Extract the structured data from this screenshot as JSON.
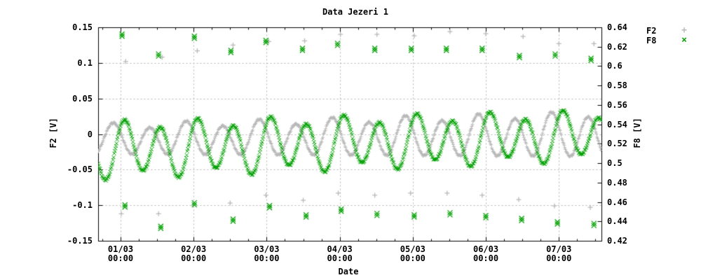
{
  "colors": {
    "background": "#ffffff",
    "axis": "#000000",
    "grid": "#b4b4b4",
    "f2": "#b8b8b8",
    "f8": "#00a000"
  },
  "chart_data": {
    "type": "scatter",
    "title": "Data Jezeri 1",
    "legend": {
      "position": "top-right-outside"
    },
    "x_axis": {
      "label": "Date",
      "unit": "days relative to 01/03 00:00",
      "range": [
        -0.307,
        6.583
      ],
      "major_ticks": [
        0,
        1,
        2,
        3,
        4,
        5,
        6
      ],
      "minor_step": 0.25,
      "grid": true,
      "tick_labels": [
        {
          "t": 0,
          "line1": "01/03",
          "line2": "00:00"
        },
        {
          "t": 1,
          "line1": "02/03",
          "line2": "00:00"
        },
        {
          "t": 2,
          "line1": "03/03",
          "line2": "00:00"
        },
        {
          "t": 3,
          "line1": "04/03",
          "line2": "00:00"
        },
        {
          "t": 4,
          "line1": "05/03",
          "line2": "00:00"
        },
        {
          "t": 5,
          "line1": "06/03",
          "line2": "00:00"
        },
        {
          "t": 6,
          "line1": "07/03",
          "line2": "00:00"
        }
      ]
    },
    "y_axis": {
      "label": "F2 [V]",
      "range": [
        -0.15,
        0.15
      ],
      "ticks": [
        {
          "label": "0.15",
          "v": 0.15
        },
        {
          "label": "0.1",
          "v": 0.1
        },
        {
          "label": "0.05",
          "v": 0.05
        },
        {
          "label": "0",
          "v": 0
        },
        {
          "label": "-0.05",
          "v": -0.05
        },
        {
          "label": "-0.1",
          "v": -0.1
        },
        {
          "label": "-0.15",
          "v": -0.15
        }
      ],
      "grid_values": [
        0.1,
        0.05,
        0,
        -0.05,
        -0.1
      ]
    },
    "y2_axis": {
      "label": "F8 [V]",
      "range": [
        0.42,
        0.64
      ],
      "ticks": [
        {
          "label": "0.64",
          "v": 0.64
        },
        {
          "label": "0.62",
          "v": 0.62
        },
        {
          "label": "0.6",
          "v": 0.6
        },
        {
          "label": "0.58",
          "v": 0.58
        },
        {
          "label": "0.56",
          "v": 0.56
        },
        {
          "label": "0.54",
          "v": 0.54
        },
        {
          "label": "0.52",
          "v": 0.52
        },
        {
          "label": "0.5",
          "v": 0.5
        },
        {
          "label": "0.48",
          "v": 0.48
        },
        {
          "label": "0.46",
          "v": 0.46
        },
        {
          "label": "0.44",
          "v": 0.44
        },
        {
          "label": "0.42",
          "v": 0.42
        }
      ]
    },
    "series": [
      {
        "name": "F2",
        "marker": "plus",
        "legend_glyph": "+",
        "color": "#b8b8b8",
        "axis": "left",
        "dense_model": {
          "description": "dense semidiurnal oscillation band, values in left-axis volts, t in days",
          "period": 0.5,
          "t_zero": -0.225,
          "mean_base": -0.008,
          "mean_slope": 0.001,
          "amp_base": 0.02,
          "amp_slope": 0.0015,
          "diurnal_amp": 0.004,
          "diurnal_t_zero": -0.35,
          "noise": 0.0016,
          "sample_step": 0.008
        },
        "outliers": [
          [
            0.07,
            0.102
          ],
          [
            0.57,
            0.108
          ],
          [
            1.05,
            0.117
          ],
          [
            1.54,
            0.125
          ],
          [
            2.03,
            0.13
          ],
          [
            2.52,
            0.131
          ],
          [
            3.01,
            0.14
          ],
          [
            3.51,
            0.14
          ],
          [
            4.02,
            0.138
          ],
          [
            4.51,
            0.144
          ],
          [
            5.0,
            0.141
          ],
          [
            5.51,
            0.137
          ],
          [
            6.0,
            0.127
          ],
          [
            6.48,
            0.127
          ],
          [
            0.01,
            -0.112
          ],
          [
            0.52,
            -0.112
          ],
          [
            1.0,
            -0.1
          ],
          [
            1.5,
            -0.097
          ],
          [
            1.99,
            -0.086
          ],
          [
            2.5,
            -0.093
          ],
          [
            2.98,
            -0.083
          ],
          [
            3.48,
            -0.086
          ],
          [
            3.97,
            -0.083
          ],
          [
            4.47,
            -0.083
          ],
          [
            4.95,
            -0.086
          ],
          [
            5.45,
            -0.092
          ],
          [
            5.94,
            -0.101
          ],
          [
            6.43,
            -0.103
          ]
        ]
      },
      {
        "name": "F8",
        "marker": "cross",
        "legend_glyph": "×",
        "color": "#00a000",
        "axis": "right",
        "dense_model": {
          "description": "dense semidiurnal oscillation band, values in left-axis volts, t in days",
          "period": 0.5,
          "t_zero": -0.075,
          "mean_base": -0.022,
          "mean_slope": 0.003,
          "amp_base": 0.036,
          "amp_slope": -0.0008,
          "diurnal_amp": 0.008,
          "diurnal_t_zero": -0.075,
          "noise": 0.0014,
          "sample_step": 0.008
        },
        "outliers": [
          [
            0.02,
            0.139
          ],
          [
            0.52,
            0.111
          ],
          [
            1.01,
            0.136
          ],
          [
            1.51,
            0.116
          ],
          [
            1.99,
            0.13
          ],
          [
            2.49,
            0.119
          ],
          [
            2.97,
            0.126
          ],
          [
            3.48,
            0.119
          ],
          [
            3.98,
            0.119
          ],
          [
            4.46,
            0.119
          ],
          [
            4.95,
            0.119
          ],
          [
            5.46,
            0.109
          ],
          [
            5.95,
            0.111
          ],
          [
            6.44,
            0.105
          ],
          [
            0.06,
            -0.101
          ],
          [
            0.55,
            -0.131
          ],
          [
            1.01,
            -0.098
          ],
          [
            1.54,
            -0.121
          ],
          [
            2.04,
            -0.102
          ],
          [
            2.54,
            -0.115
          ],
          [
            3.02,
            -0.107
          ],
          [
            3.51,
            -0.113
          ],
          [
            4.02,
            -0.115
          ],
          [
            4.51,
            -0.112
          ],
          [
            5.0,
            -0.116
          ],
          [
            5.49,
            -0.12
          ],
          [
            5.98,
            -0.125
          ],
          [
            6.48,
            -0.127
          ]
        ]
      }
    ]
  }
}
